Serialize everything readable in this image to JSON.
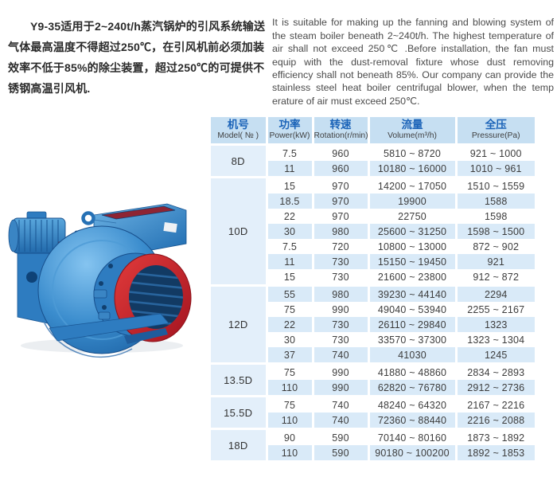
{
  "intro_cn": "Y9-35适用于2~240t/h蒸汽锅炉的引风系统输送气体最高温度不得超过250℃，在引风机前必须加装效率不低于85%的除尘装置，超过250℃的可提供不锈钢高温引风机.",
  "intro_en": "It is suitable for making up the fanning and blowing system of the steam boiler beneath 2~240t/h. The highest temperature of air shall not exceed 250℃ .Before installation, the fan must equip with the dust-removal fixture whose dust removing efficiency shall not beneath 85%. Our company can provide the stainless steel heat boiler centrifugal blower, when the temp erature of air must exceed 250℃.",
  "product_image": {
    "subject": "Y9-35 centrifugal induced draft fan photo",
    "body_color": "#2e7cc0",
    "accent_color": "#c5242b"
  },
  "table": {
    "columns": [
      {
        "cn": "机号",
        "en": "Model( № )"
      },
      {
        "cn": "功率",
        "en": "Power(kW)"
      },
      {
        "cn": "转速",
        "en": "Rotation(r/min)"
      },
      {
        "cn": "流量",
        "en": "Volume(m³/h)"
      },
      {
        "cn": "全压",
        "en": "Pressure(Pa)"
      }
    ],
    "colors": {
      "header_bg": "#c6dff2",
      "header_text": "#1b63b8",
      "stripe_bg": "#d9eaf8",
      "model_bg": "#e3effa"
    },
    "groups": [
      {
        "model": "8D",
        "rows": [
          [
            "7.5",
            "960",
            "5810 ~ 8720",
            "921 ~ 1000"
          ],
          [
            "11",
            "960",
            "10180 ~ 16000",
            "1010 ~ 961"
          ]
        ]
      },
      {
        "model": "10D",
        "rows": [
          [
            "15",
            "970",
            "14200 ~ 17050",
            "1510 ~ 1559"
          ],
          [
            "18.5",
            "970",
            "19900",
            "1588"
          ],
          [
            "22",
            "970",
            "22750",
            "1598"
          ],
          [
            "30",
            "980",
            "25600 ~ 31250",
            "1598 ~ 1500"
          ],
          [
            "7.5",
            "720",
            "10800 ~ 13000",
            "872 ~ 902"
          ],
          [
            "11",
            "730",
            "15150 ~ 19450",
            "921"
          ],
          [
            "15",
            "730",
            "21600 ~ 23800",
            "912 ~ 872"
          ]
        ]
      },
      {
        "model": "12D",
        "rows": [
          [
            "55",
            "980",
            "39230 ~ 44140",
            "2294"
          ],
          [
            "75",
            "990",
            "49040 ~ 53940",
            "2255 ~ 2167"
          ],
          [
            "22",
            "730",
            "26110 ~ 29840",
            "1323"
          ],
          [
            "30",
            "730",
            "33570 ~ 37300",
            "1323 ~ 1304"
          ],
          [
            "37",
            "740",
            "41030",
            "1245"
          ]
        ]
      },
      {
        "model": "13.5D",
        "rows": [
          [
            "75",
            "990",
            "41880 ~ 48860",
            "2834 ~ 2893"
          ],
          [
            "110",
            "990",
            "62820 ~ 76780",
            "2912 ~ 2736"
          ]
        ]
      },
      {
        "model": "15.5D",
        "rows": [
          [
            "75",
            "740",
            "48240 ~ 64320",
            "2167 ~ 2216"
          ],
          [
            "110",
            "740",
            "72360 ~ 88440",
            "2216 ~ 2088"
          ]
        ]
      },
      {
        "model": "18D",
        "rows": [
          [
            "90",
            "590",
            "70140 ~ 80160",
            "1873 ~ 1892"
          ],
          [
            "110",
            "590",
            "90180 ~ 100200",
            "1892 ~ 1853"
          ]
        ]
      }
    ]
  }
}
